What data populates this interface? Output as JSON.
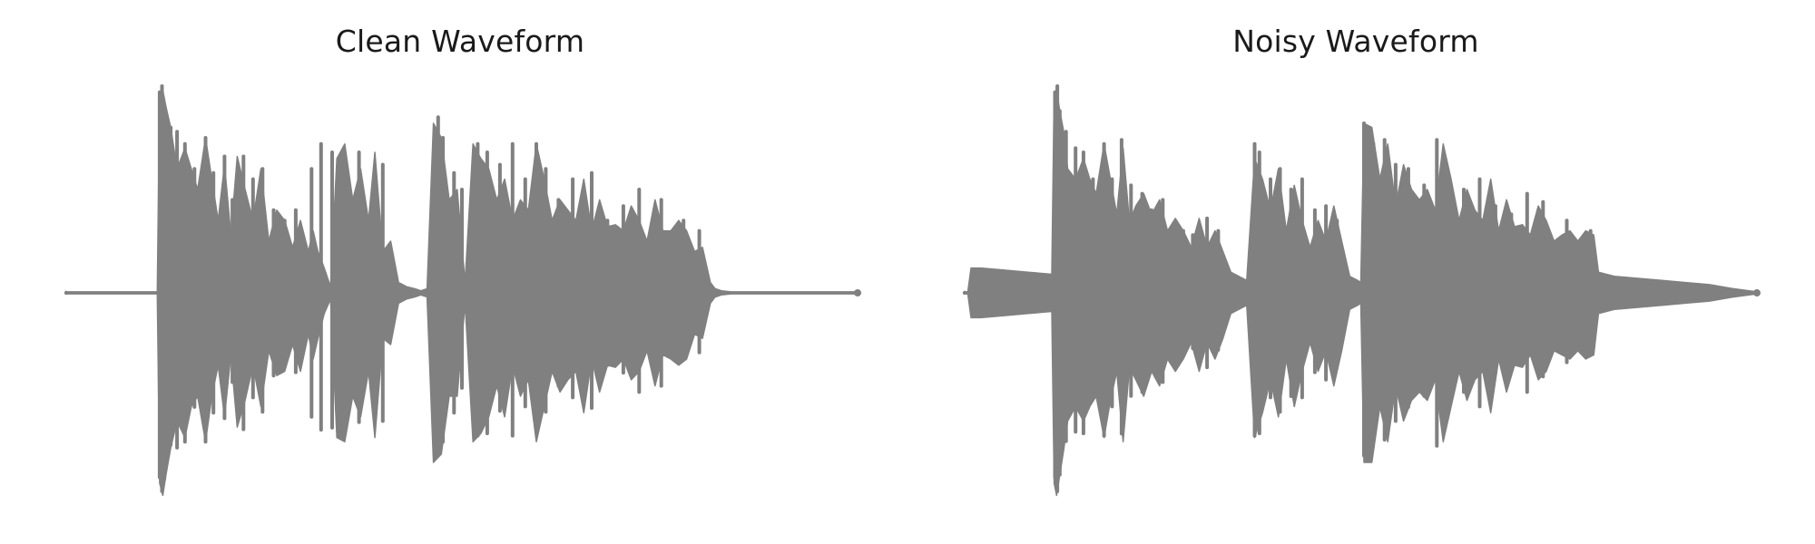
{
  "chart_data": [
    {
      "type": "area",
      "title": "Clean Waveform",
      "xlabel": "",
      "ylabel": "",
      "axes_visible": false,
      "grid": false,
      "color": "#808080",
      "ylim": [
        -1,
        1
      ],
      "envelope": {
        "x": [
          0.0,
          0.115,
          0.118,
          0.122,
          0.126,
          0.132,
          0.14,
          0.15,
          0.158,
          0.166,
          0.176,
          0.184,
          0.192,
          0.2,
          0.208,
          0.216,
          0.226,
          0.236,
          0.246,
          0.256,
          0.266,
          0.276,
          0.286,
          0.296,
          0.306,
          0.312,
          0.318,
          0.326,
          0.334,
          0.342,
          0.352,
          0.362,
          0.372,
          0.382,
          0.39,
          0.4,
          0.41,
          0.42,
          0.43,
          0.44,
          0.448,
          0.456,
          0.464,
          0.474,
          0.484,
          0.494,
          0.504,
          0.514,
          0.524,
          0.534,
          0.544,
          0.554,
          0.564,
          0.574,
          0.584,
          0.594,
          0.604,
          0.614,
          0.624,
          0.634,
          0.644,
          0.654,
          0.664,
          0.674,
          0.684,
          0.694,
          0.704,
          0.714,
          0.724,
          0.734,
          0.744,
          0.754,
          0.764,
          0.774,
          0.784,
          0.794,
          0.804,
          0.814,
          0.82,
          0.828,
          0.84,
          1.0
        ],
        "pos": [
          0.005,
          0.005,
          0.97,
          0.98,
          0.9,
          0.8,
          0.6,
          0.7,
          0.6,
          0.5,
          0.75,
          0.55,
          0.35,
          0.62,
          0.28,
          0.66,
          0.5,
          0.35,
          0.6,
          0.25,
          0.4,
          0.35,
          0.22,
          0.35,
          0.2,
          0.3,
          0.2,
          0.12,
          0.03,
          0.65,
          0.72,
          0.45,
          0.6,
          0.35,
          0.68,
          0.2,
          0.25,
          0.05,
          0.03,
          0.02,
          0.01,
          0.02,
          0.82,
          0.75,
          0.45,
          0.5,
          0.05,
          0.72,
          0.65,
          0.6,
          0.45,
          0.55,
          0.35,
          0.45,
          0.4,
          0.72,
          0.55,
          0.35,
          0.45,
          0.4,
          0.35,
          0.55,
          0.3,
          0.45,
          0.32,
          0.33,
          0.3,
          0.42,
          0.35,
          0.25,
          0.45,
          0.3,
          0.3,
          0.35,
          0.3,
          0.2,
          0.22,
          0.05,
          0.02,
          0.01,
          0.005,
          0.005
        ],
        "neg": [
          0.005,
          0.005,
          0.92,
          0.98,
          0.88,
          0.75,
          0.62,
          0.7,
          0.55,
          0.5,
          0.72,
          0.5,
          0.35,
          0.6,
          0.3,
          0.65,
          0.52,
          0.35,
          0.55,
          0.28,
          0.4,
          0.38,
          0.25,
          0.38,
          0.2,
          0.32,
          0.22,
          0.1,
          0.03,
          0.7,
          0.72,
          0.5,
          0.6,
          0.38,
          0.7,
          0.22,
          0.25,
          0.05,
          0.03,
          0.02,
          0.01,
          0.02,
          0.82,
          0.78,
          0.5,
          0.5,
          0.05,
          0.72,
          0.68,
          0.6,
          0.45,
          0.6,
          0.35,
          0.5,
          0.42,
          0.72,
          0.55,
          0.38,
          0.48,
          0.42,
          0.38,
          0.58,
          0.32,
          0.48,
          0.35,
          0.36,
          0.32,
          0.42,
          0.38,
          0.28,
          0.45,
          0.3,
          0.32,
          0.35,
          0.32,
          0.2,
          0.22,
          0.05,
          0.02,
          0.01,
          0.005,
          0.005
        ]
      },
      "spikes_x": [
        0.118,
        0.121,
        0.124,
        0.132,
        0.14,
        0.15,
        0.162,
        0.176,
        0.186,
        0.2,
        0.21,
        0.224,
        0.236,
        0.248,
        0.262,
        0.276,
        0.29,
        0.31,
        0.322,
        0.336,
        0.35,
        0.37,
        0.386,
        0.4,
        0.47,
        0.476,
        0.49,
        0.5,
        0.52,
        0.532,
        0.548,
        0.564,
        0.58,
        0.594,
        0.606,
        0.622,
        0.64,
        0.664,
        0.684,
        0.704,
        0.724,
        0.752,
        0.78,
        0.8
      ],
      "spikes_amp": [
        0.97,
        1.0,
        0.9,
        0.8,
        0.78,
        0.72,
        0.6,
        0.75,
        0.58,
        0.66,
        0.45,
        0.66,
        0.55,
        0.6,
        0.4,
        0.35,
        0.4,
        0.6,
        0.72,
        0.68,
        0.55,
        0.68,
        0.3,
        0.62,
        0.85,
        0.75,
        0.58,
        0.5,
        0.72,
        0.68,
        0.62,
        0.72,
        0.55,
        0.72,
        0.6,
        0.45,
        0.55,
        0.58,
        0.35,
        0.42,
        0.5,
        0.45,
        0.35,
        0.3
      ]
    },
    {
      "type": "area",
      "title": "Noisy Waveform",
      "xlabel": "",
      "ylabel": "",
      "axes_visible": false,
      "grid": false,
      "color": "#808080",
      "ylim": [
        -1,
        1
      ],
      "envelope": {
        "x": [
          0.0,
          0.004,
          0.008,
          0.02,
          0.05,
          0.08,
          0.11,
          0.113,
          0.116,
          0.12,
          0.125,
          0.13,
          0.14,
          0.15,
          0.158,
          0.166,
          0.176,
          0.184,
          0.192,
          0.2,
          0.208,
          0.216,
          0.226,
          0.236,
          0.246,
          0.256,
          0.266,
          0.276,
          0.286,
          0.296,
          0.306,
          0.316,
          0.326,
          0.336,
          0.346,
          0.356,
          0.366,
          0.376,
          0.386,
          0.396,
          0.406,
          0.416,
          0.426,
          0.436,
          0.446,
          0.456,
          0.466,
          0.476,
          0.486,
          0.496,
          0.5,
          0.504,
          0.514,
          0.524,
          0.534,
          0.544,
          0.554,
          0.564,
          0.574,
          0.584,
          0.594,
          0.604,
          0.614,
          0.624,
          0.634,
          0.644,
          0.654,
          0.664,
          0.674,
          0.684,
          0.694,
          0.704,
          0.714,
          0.724,
          0.734,
          0.744,
          0.754,
          0.764,
          0.774,
          0.784,
          0.794,
          0.8,
          0.82,
          0.85,
          0.88,
          0.91,
          0.94,
          0.97,
          0.99,
          1.0
        ],
        "pos": [
          0.005,
          0.005,
          0.12,
          0.12,
          0.11,
          0.1,
          0.09,
          0.97,
          0.98,
          0.88,
          0.78,
          0.6,
          0.55,
          0.65,
          0.55,
          0.48,
          0.72,
          0.55,
          0.38,
          0.7,
          0.34,
          0.42,
          0.48,
          0.38,
          0.45,
          0.3,
          0.36,
          0.3,
          0.22,
          0.36,
          0.22,
          0.3,
          0.2,
          0.1,
          0.08,
          0.06,
          0.65,
          0.55,
          0.4,
          0.6,
          0.3,
          0.52,
          0.35,
          0.22,
          0.35,
          0.25,
          0.42,
          0.25,
          0.08,
          0.06,
          0.05,
          0.82,
          0.8,
          0.55,
          0.72,
          0.42,
          0.62,
          0.5,
          0.45,
          0.5,
          0.4,
          0.72,
          0.55,
          0.35,
          0.5,
          0.4,
          0.35,
          0.55,
          0.3,
          0.45,
          0.32,
          0.33,
          0.28,
          0.42,
          0.35,
          0.25,
          0.28,
          0.3,
          0.25,
          0.3,
          0.28,
          0.1,
          0.08,
          0.07,
          0.06,
          0.05,
          0.04,
          0.02,
          0.01,
          0.005
        ],
        "neg": [
          0.005,
          0.005,
          0.12,
          0.12,
          0.11,
          0.1,
          0.09,
          0.92,
          0.98,
          0.88,
          0.76,
          0.62,
          0.55,
          0.62,
          0.55,
          0.5,
          0.7,
          0.52,
          0.38,
          0.72,
          0.36,
          0.42,
          0.5,
          0.38,
          0.45,
          0.32,
          0.38,
          0.32,
          0.24,
          0.38,
          0.24,
          0.32,
          0.22,
          0.1,
          0.08,
          0.06,
          0.7,
          0.58,
          0.42,
          0.6,
          0.32,
          0.55,
          0.38,
          0.24,
          0.38,
          0.28,
          0.45,
          0.28,
          0.08,
          0.06,
          0.05,
          0.82,
          0.82,
          0.55,
          0.72,
          0.45,
          0.62,
          0.52,
          0.48,
          0.52,
          0.42,
          0.72,
          0.55,
          0.38,
          0.52,
          0.42,
          0.38,
          0.58,
          0.32,
          0.48,
          0.35,
          0.36,
          0.3,
          0.42,
          0.38,
          0.28,
          0.3,
          0.32,
          0.28,
          0.32,
          0.3,
          0.1,
          0.08,
          0.07,
          0.06,
          0.05,
          0.04,
          0.02,
          0.01,
          0.005
        ]
      },
      "spikes_x": [
        0.114,
        0.117,
        0.12,
        0.128,
        0.14,
        0.15,
        0.162,
        0.176,
        0.186,
        0.198,
        0.21,
        0.224,
        0.236,
        0.25,
        0.262,
        0.276,
        0.288,
        0.306,
        0.32,
        0.366,
        0.372,
        0.386,
        0.398,
        0.412,
        0.426,
        0.442,
        0.456,
        0.47,
        0.504,
        0.508,
        0.516,
        0.53,
        0.544,
        0.56,
        0.58,
        0.596,
        0.61,
        0.63,
        0.65,
        0.67,
        0.69,
        0.71,
        0.73,
        0.76,
        0.79
      ],
      "spikes_amp": [
        0.97,
        1.0,
        0.88,
        0.78,
        0.7,
        0.68,
        0.55,
        0.72,
        0.55,
        0.74,
        0.52,
        0.48,
        0.4,
        0.45,
        0.32,
        0.3,
        0.28,
        0.36,
        0.3,
        0.72,
        0.68,
        0.55,
        0.6,
        0.5,
        0.55,
        0.4,
        0.42,
        0.35,
        0.82,
        0.8,
        0.72,
        0.74,
        0.62,
        0.6,
        0.52,
        0.74,
        0.5,
        0.5,
        0.55,
        0.42,
        0.38,
        0.48,
        0.44,
        0.35,
        0.3
      ]
    }
  ]
}
